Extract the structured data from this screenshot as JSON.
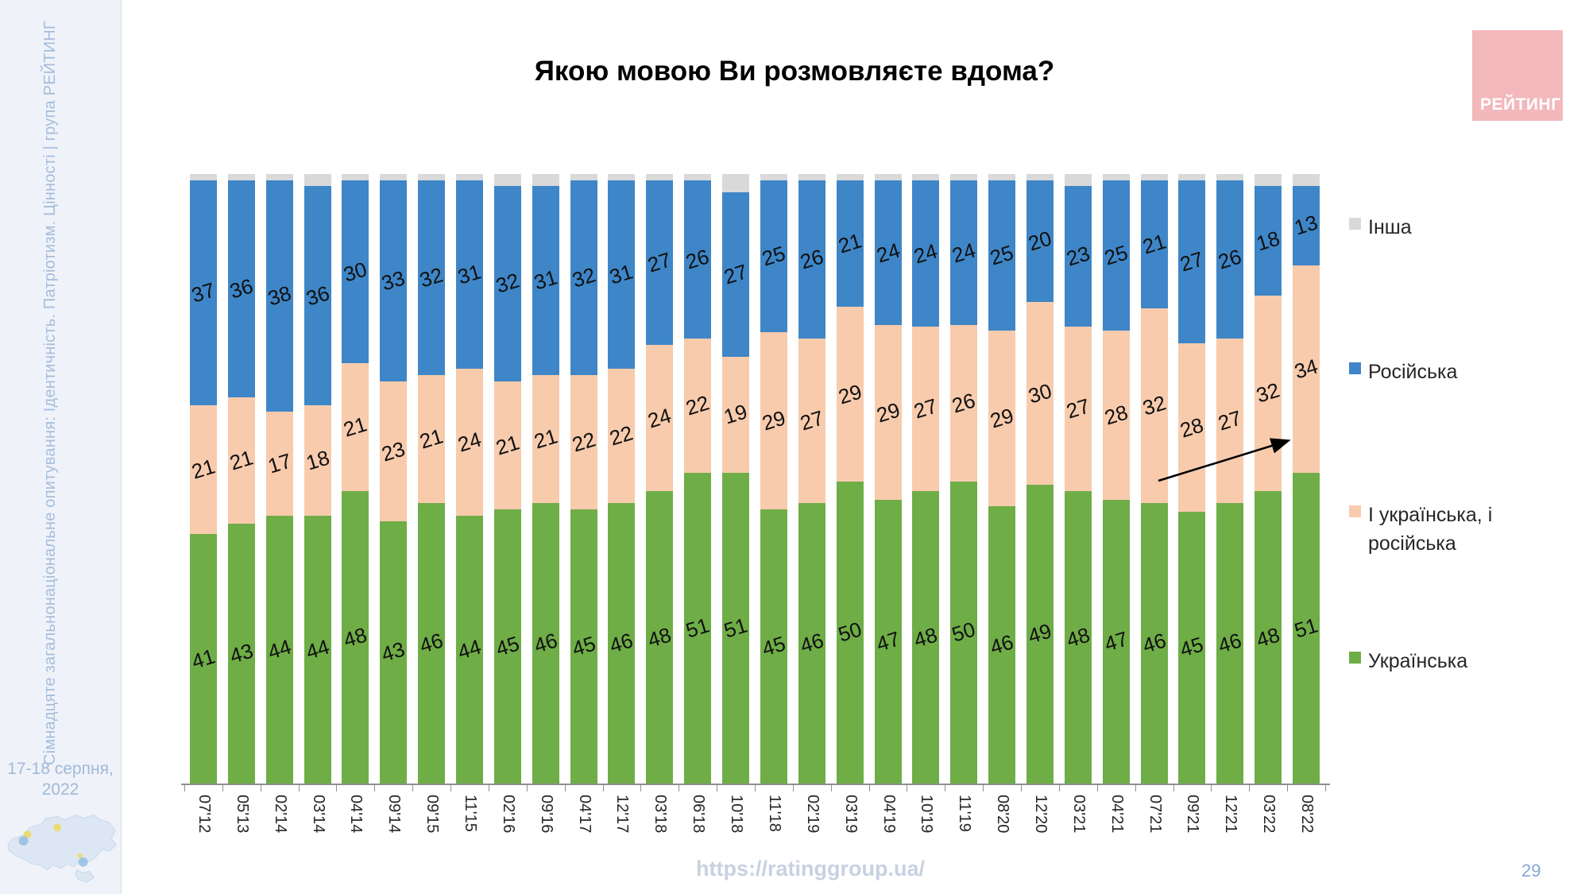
{
  "title": "Якою мовою Ви розмовляєте вдома?",
  "sidebar": {
    "vertical_text": "Сімнадцяте загальнонаціональне опитування: Ідентичність. Патріотизм. Цінності | група РЕЙТИНГ",
    "date_line1": "17-18 серпня,",
    "date_line2": "2022"
  },
  "logo": {
    "text": "РЕЙТИНГ",
    "background": "#f3b8bc"
  },
  "footer": {
    "url": "https://ratinggroup.ua/",
    "page_number": "29"
  },
  "colors": {
    "ukrainian": "#6fad47",
    "both": "#f8cbad",
    "russian": "#3e86c7",
    "other": "#d9d9d9"
  },
  "chart_data": {
    "type": "bar",
    "stacked": true,
    "title": "Якою мовою Ви розмовляєте вдома?",
    "xlabel": "",
    "ylabel": "",
    "ylim": [
      0,
      100
    ],
    "grid": false,
    "legend_position": "right",
    "categories": [
      "07'12",
      "05'13",
      "02'14",
      "03'14",
      "04'14",
      "09'14",
      "09'15",
      "11'15",
      "02'16",
      "09'16",
      "04'17",
      "12'17",
      "03'18",
      "06'18",
      "10'18",
      "11'18",
      "02'19",
      "03'19",
      "04'19",
      "10'19",
      "11'19",
      "08'20",
      "12'20",
      "03'21",
      "04'21",
      "07'21",
      "09'21",
      "12'21",
      "03'22",
      "08'22"
    ],
    "series": [
      {
        "name": "Українська",
        "color": "#6fad47",
        "labels_shown": true,
        "values": [
          41,
          43,
          44,
          44,
          48,
          43,
          46,
          44,
          45,
          46,
          45,
          46,
          48,
          51,
          51,
          45,
          46,
          50,
          47,
          48,
          50,
          46,
          49,
          48,
          47,
          46,
          45,
          46,
          48,
          51
        ]
      },
      {
        "name": "І українська, і російська",
        "color": "#f8cbad",
        "labels_shown": true,
        "values": [
          21,
          21,
          17,
          18,
          21,
          23,
          21,
          24,
          21,
          21,
          22,
          22,
          24,
          22,
          19,
          29,
          27,
          29,
          29,
          27,
          26,
          29,
          30,
          27,
          28,
          32,
          28,
          27,
          32,
          34
        ]
      },
      {
        "name": "Російська",
        "color": "#3e86c7",
        "labels_shown": true,
        "values": [
          37,
          36,
          38,
          36,
          30,
          33,
          32,
          31,
          32,
          31,
          32,
          31,
          27,
          26,
          27,
          25,
          26,
          21,
          24,
          24,
          24,
          25,
          20,
          23,
          25,
          21,
          27,
          26,
          18,
          13
        ]
      },
      {
        "name": "Інша",
        "color": "#d9d9d9",
        "labels_shown": false,
        "values": [
          1,
          0,
          1,
          2,
          1,
          1,
          1,
          1,
          2,
          2,
          1,
          1,
          1,
          1,
          3,
          1,
          1,
          0,
          0,
          1,
          0,
          0,
          1,
          2,
          0,
          1,
          0,
          1,
          2,
          2
        ]
      }
    ],
    "legend": [
      {
        "label": "Інша",
        "color": "#d9d9d9"
      },
      {
        "label": "Російська",
        "color": "#3e86c7"
      },
      {
        "label": "І українська, і російська",
        "color": "#f8cbad"
      },
      {
        "label": "Українська",
        "color": "#6fad47"
      }
    ],
    "annotation": {
      "type": "arrow",
      "note": "upward arrow pointing to last bar mixed-language segment"
    }
  }
}
